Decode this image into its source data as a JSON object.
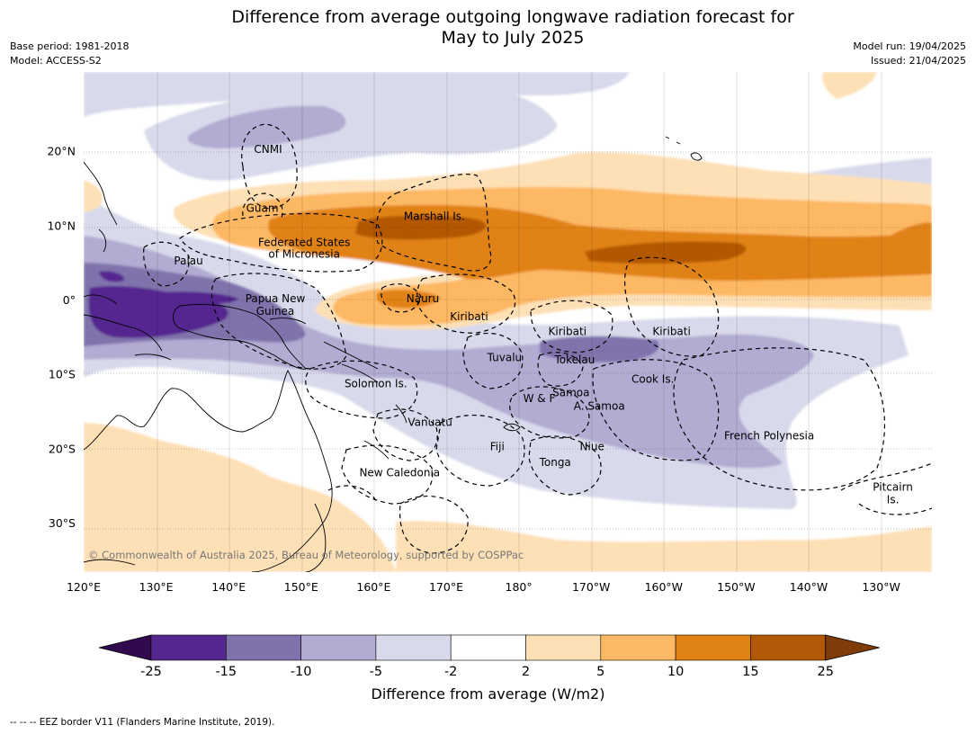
{
  "title_line1": "Difference from average outgoing longwave radiation forecast for",
  "title_line2": "May to July 2025",
  "base_period": "Base period: 1981-2018",
  "model": "Model: ACCESS-S2",
  "model_run": "Model run: 19/04/2025",
  "issued": "Issued: 21/04/2025",
  "copyright": "© Commonwealth of Australia 2025, Bureau of Meteorology, supported by COSPPac",
  "lon_ticks": [
    "120°E",
    "130°E",
    "140°E",
    "150°E",
    "160°E",
    "170°E",
    "180°",
    "170°W",
    "160°W",
    "150°W",
    "140°W",
    "130°W"
  ],
  "lat_ticks": [
    "20°N",
    "10°N",
    "0°",
    "10°S",
    "20°S",
    "30°S"
  ],
  "country_labels": [
    {
      "text": "CNMI",
      "lon": 145.5,
      "lat": 20.2
    },
    {
      "text": "Guam",
      "lon": 144.7,
      "lat": 12.3
    },
    {
      "text": "Marshall Is.",
      "lon": 168.5,
      "lat": 11.2
    },
    {
      "text": "Federated States",
      "lon": 150.5,
      "lat": 7.7
    },
    {
      "text": "of Micronesia",
      "lon": 150.5,
      "lat": 6.1
    },
    {
      "text": "Palau",
      "lon": 134.5,
      "lat": 5.2
    },
    {
      "text": "Papua New",
      "lon": 146.5,
      "lat": 0.1
    },
    {
      "text": "Guinea",
      "lon": 146.5,
      "lat": -1.6
    },
    {
      "text": "Nauru",
      "lon": 166.9,
      "lat": 0.1
    },
    {
      "text": "Kiribati",
      "lon": 173.3,
      "lat": -2.3
    },
    {
      "text": "Kiribati",
      "lon": -173.1,
      "lat": -4.3
    },
    {
      "text": "Kiribati",
      "lon": -158.7,
      "lat": -4.3
    },
    {
      "text": "Tuvalu",
      "lon": 178.2,
      "lat": -7.8
    },
    {
      "text": "Tokelau",
      "lon": -172.1,
      "lat": -8.1
    },
    {
      "text": "Cook Is.",
      "lon": -161.3,
      "lat": -10.7
    },
    {
      "text": "Solomon Is.",
      "lon": 160.4,
      "lat": -11.3
    },
    {
      "text": "Samoa",
      "lon": -172.6,
      "lat": -12.5
    },
    {
      "text": "W & F",
      "lon": -177.0,
      "lat": -13.3
    },
    {
      "text": "A. Samoa",
      "lon": -168.7,
      "lat": -14.3
    },
    {
      "text": "Vanuatu",
      "lon": 167.9,
      "lat": -16.5
    },
    {
      "text": "French Polynesia",
      "lon": -145.2,
      "lat": -18.3
    },
    {
      "text": "Fiji",
      "lon": 177.2,
      "lat": -19.8
    },
    {
      "text": "Niue",
      "lon": -169.7,
      "lat": -19.8
    },
    {
      "text": "Tonga",
      "lon": -174.8,
      "lat": -21.9
    },
    {
      "text": "New Caledonia",
      "lon": 163.7,
      "lat": -23.3
    },
    {
      "text": "Pitcairn",
      "lon": -128.1,
      "lat": -25.2
    },
    {
      "text": "Is.",
      "lon": -128.1,
      "lat": -26.9
    }
  ],
  "colorbar": {
    "ticks": [
      "-25",
      "-15",
      "-10",
      "-5",
      "-2",
      "2",
      "5",
      "10",
      "15",
      "25"
    ],
    "colors": [
      "#31094f",
      "#54278f",
      "#8073ac",
      "#b2abd2",
      "#d8daeb",
      "#ffffff",
      "#fee0b6",
      "#fdb863",
      "#e08214",
      "#b35806",
      "#7f3b08"
    ],
    "label": "Difference from average (W/m2)"
  },
  "footnote": "--  --  -- EEZ border V11 (Flanders Marine Institute, 2019)."
}
